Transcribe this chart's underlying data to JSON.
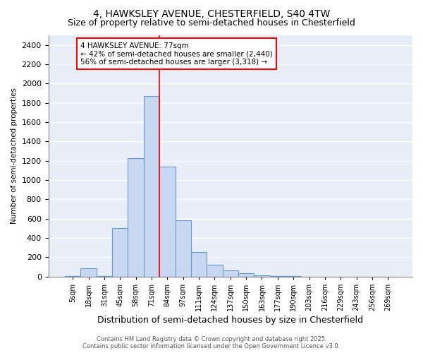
{
  "title_line1": "4, HAWKSLEY AVENUE, CHESTERFIELD, S40 4TW",
  "title_line2": "Size of property relative to semi-detached houses in Chesterfield",
  "xlabel": "Distribution of semi-detached houses by size in Chesterfield",
  "ylabel": "Number of semi-detached properties",
  "categories": [
    "5sqm",
    "18sqm",
    "31sqm",
    "45sqm",
    "58sqm",
    "71sqm",
    "84sqm",
    "97sqm",
    "111sqm",
    "124sqm",
    "137sqm",
    "150sqm",
    "163sqm",
    "177sqm",
    "190sqm",
    "203sqm",
    "216sqm",
    "229sqm",
    "243sqm",
    "256sqm",
    "269sqm"
  ],
  "values": [
    5,
    85,
    5,
    500,
    1230,
    1870,
    1140,
    580,
    250,
    120,
    65,
    35,
    15,
    5,
    5,
    0,
    0,
    0,
    0,
    0,
    0
  ],
  "bar_color": "#c8d8f0",
  "bar_edge_color": "#6699cc",
  "bar_linewidth": 0.8,
  "vline_index": 5.5,
  "vline_color": "red",
  "vline_linewidth": 1.2,
  "annotation_text": "4 HAWKSLEY AVENUE: 77sqm\n← 42% of semi-detached houses are smaller (2,440)\n56% of semi-detached houses are larger (3,318) →",
  "ylim": [
    0,
    2500
  ],
  "yticks": [
    0,
    200,
    400,
    600,
    800,
    1000,
    1200,
    1400,
    1600,
    1800,
    2000,
    2200,
    2400
  ],
  "background_color": "#e8eef8",
  "grid_color": "white",
  "footer_text": "Contains HM Land Registry data © Crown copyright and database right 2025.\nContains public sector information licensed under the Open Government Licence v3.0.",
  "title_fontsize": 10,
  "subtitle_fontsize": 9,
  "xlabel_fontsize": 9,
  "ylabel_fontsize": 7.5,
  "tick_fontsize": 7,
  "annotation_fontsize": 7.5,
  "footer_fontsize": 6
}
